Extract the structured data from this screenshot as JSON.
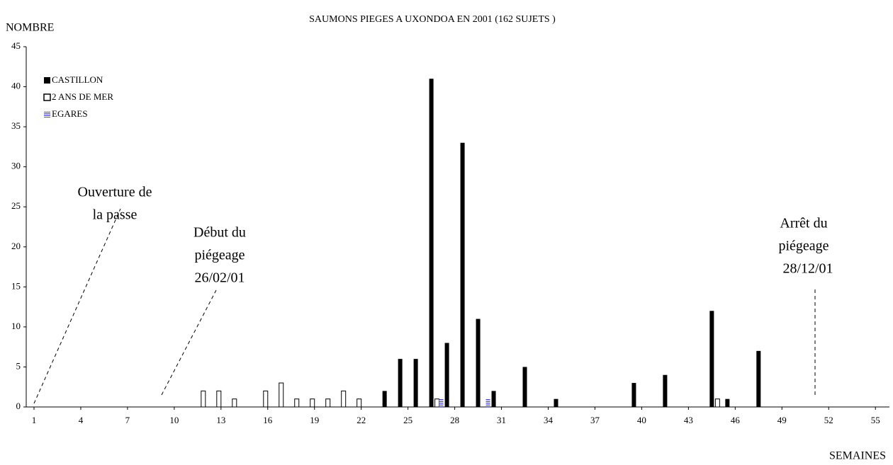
{
  "chart_data": {
    "type": "bar",
    "title": "SAUMONS PIEGES A UXONDOA   EN 2001 (162 SUJETS )",
    "y_label": "NOMBRE",
    "x_label": "SEMAINES",
    "x": [
      1,
      2,
      3,
      4,
      5,
      6,
      7,
      8,
      9,
      10,
      11,
      12,
      13,
      14,
      15,
      16,
      17,
      18,
      19,
      20,
      21,
      22,
      23,
      24,
      25,
      26,
      27,
      28,
      29,
      30,
      31,
      32,
      33,
      34,
      35,
      36,
      37,
      38,
      39,
      40,
      41,
      42,
      43,
      44,
      45,
      46,
      47,
      48,
      49,
      50,
      51,
      52,
      53,
      54,
      55
    ],
    "xlim": [
      0.5,
      55.9
    ],
    "xticks": [
      1,
      4,
      7,
      10,
      13,
      16,
      19,
      22,
      25,
      28,
      31,
      34,
      37,
      40,
      43,
      46,
      49,
      52,
      55
    ],
    "ylim": [
      0,
      45
    ],
    "yticks": [
      0,
      5,
      10,
      15,
      20,
      25,
      30,
      35,
      40,
      45
    ],
    "series": [
      {
        "name": "CASTILLON",
        "color": "#000000",
        "values": [
          0,
          0,
          0,
          0,
          0,
          0,
          0,
          0,
          0,
          0,
          0,
          0,
          0,
          0,
          0,
          0,
          0,
          0,
          0,
          0,
          0,
          0,
          0,
          2,
          6,
          6,
          41,
          8,
          33,
          11,
          2,
          0,
          5,
          0,
          1,
          0,
          0,
          0,
          0,
          3,
          0,
          4,
          0,
          0,
          12,
          1,
          0,
          7,
          0,
          0,
          0,
          0,
          0,
          0,
          0
        ]
      },
      {
        "name": "2 ANS DE MER",
        "color": "#ffffff",
        "values": [
          0,
          0,
          0,
          0,
          0,
          0,
          0,
          0,
          0,
          0,
          0,
          2,
          2,
          1,
          0,
          2,
          3,
          1,
          1,
          1,
          2,
          1,
          0,
          0,
          0,
          0,
          1,
          0,
          0,
          0,
          0,
          0,
          0,
          0,
          0,
          0,
          0,
          0,
          0,
          0,
          0,
          0,
          0,
          0,
          1,
          0,
          0,
          0,
          0,
          0,
          0,
          0,
          0,
          0,
          0
        ]
      },
      {
        "name": "EGARES",
        "color": "#4a4ae0",
        "values": [
          0,
          0,
          0,
          0,
          0,
          0,
          0,
          0,
          0,
          0,
          0,
          0,
          0,
          0,
          0,
          0,
          0,
          0,
          0,
          0,
          0,
          0,
          0,
          0,
          0,
          0,
          1,
          0,
          0,
          1,
          0,
          0,
          0,
          0,
          0,
          0,
          0,
          0,
          0,
          0,
          0,
          0,
          0,
          0,
          0,
          0,
          0,
          0,
          0,
          0,
          0,
          0,
          0,
          0,
          0
        ]
      }
    ],
    "annotations": [
      [
        "Ouverture de",
        "la passe"
      ],
      [
        "Début du",
        "piégeage",
        "26/02/01"
      ],
      [
        "Arrêt du",
        "piégeage",
        "28/12/01"
      ]
    ]
  }
}
